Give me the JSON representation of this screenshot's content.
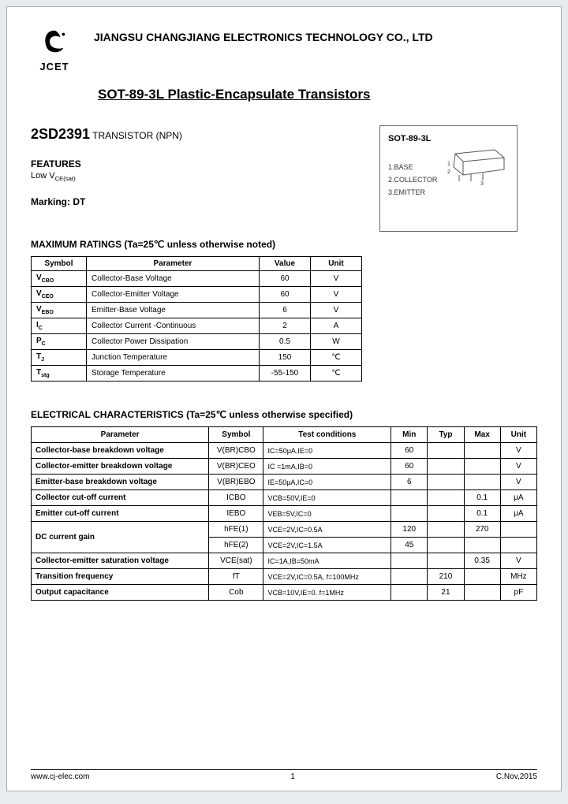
{
  "header": {
    "company": "JIANGSU CHANGJIANG ELECTRONICS TECHNOLOGY CO., LTD",
    "logo_text": "JCET",
    "subtitle": "SOT-89-3L Plastic-Encapsulate Transistors"
  },
  "part": {
    "number": "2SD2391",
    "type": "TRANSISTOR (NPN)"
  },
  "features": {
    "label": "FEATURES",
    "text": "Low V",
    "text_sub": "CE(sat)"
  },
  "marking": "Marking: DT",
  "package": {
    "title": "SOT-89-3L",
    "pins": [
      "1.BASE",
      "2.COLLECTOR",
      "3.EMITTER"
    ]
  },
  "ratings": {
    "title": "MAXIMUM RATINGS (Ta=25℃ unless otherwise noted)",
    "headers": [
      "Symbol",
      "Parameter",
      "Value",
      "Unit"
    ],
    "rows": [
      {
        "sym": "V",
        "sub": "CBO",
        "param": "Collector-Base Voltage",
        "val": "60",
        "unit": "V"
      },
      {
        "sym": "V",
        "sub": "CEO",
        "param": "Collector-Emitter Voltage",
        "val": "60",
        "unit": "V"
      },
      {
        "sym": "V",
        "sub": "EBO",
        "param": "Emitter-Base Voltage",
        "val": "6",
        "unit": "V"
      },
      {
        "sym": "I",
        "sub": "C",
        "param": "Collector Current -Continuous",
        "val": "2",
        "unit": "A"
      },
      {
        "sym": "P",
        "sub": "C",
        "param": "Collector Power Dissipation",
        "val": "0.5",
        "unit": "W"
      },
      {
        "sym": "T",
        "sub": "J",
        "param": "Junction Temperature",
        "val": "150",
        "unit": "℃"
      },
      {
        "sym": "T",
        "sub": "stg",
        "param": "Storage Temperature",
        "val": "-55-150",
        "unit": "℃"
      }
    ]
  },
  "electrical": {
    "title": "ELECTRICAL CHARACTERISTICS (Ta=25℃ unless otherwise specified)",
    "headers": [
      "Parameter",
      "Symbol",
      "Test conditions",
      "Min",
      "Typ",
      "Max",
      "Unit"
    ],
    "rows": [
      {
        "param": "Collector-base breakdown voltage",
        "sym": "V(BR)CBO",
        "cond": "IC=50μA,IE=0",
        "min": "60",
        "typ": "",
        "max": "",
        "unit": "V"
      },
      {
        "param": "Collector-emitter breakdown voltage",
        "sym": "V(BR)CEO",
        "cond": "IC =1mA,IB=0",
        "min": "60",
        "typ": "",
        "max": "",
        "unit": "V"
      },
      {
        "param": "Emitter-base breakdown voltage",
        "sym": "V(BR)EBO",
        "cond": "IE=50μA,IC=0",
        "min": "6",
        "typ": "",
        "max": "",
        "unit": "V"
      },
      {
        "param": "Collector cut-off current",
        "sym": "ICBO",
        "cond": "VCB=50V,IE=0",
        "min": "",
        "typ": "",
        "max": "0.1",
        "unit": "μA"
      },
      {
        "param": "Emitter cut-off current",
        "sym": "IEBO",
        "cond": "VEB=5V,IC=0",
        "min": "",
        "typ": "",
        "max": "0.1",
        "unit": "μA"
      },
      {
        "param": "DC current gain",
        "sym": "hFE(1)",
        "cond": "VCE=2V,IC=0.5A",
        "min": "120",
        "typ": "",
        "max": "270",
        "unit": "",
        "rowspan": 2
      },
      {
        "param": "",
        "sym": "hFE(2)",
        "cond": "VCE=2V,IC=1.5A",
        "min": "45",
        "typ": "",
        "max": "",
        "unit": ""
      },
      {
        "param": "Collector-emitter saturation voltage",
        "sym": "VCE(sat)",
        "cond": "IC=1A,IB=50mA",
        "min": "",
        "typ": "",
        "max": "0.35",
        "unit": "V"
      },
      {
        "param": "Transition frequency",
        "sym": "fT",
        "cond": "VCE=2V,IC=0.5A, f=100MHz",
        "min": "",
        "typ": "210",
        "max": "",
        "unit": "MHz"
      },
      {
        "param": "Output capacitance",
        "sym": "Cob",
        "cond": "VCB=10V,IE=0. f=1MHz",
        "min": "",
        "typ": "21",
        "max": "",
        "unit": "pF"
      }
    ]
  },
  "footer": {
    "url": "www.cj-elec.com",
    "page": "1",
    "date": "C,Nov,2015"
  },
  "colors": {
    "page_bg": "#ffffff",
    "body_bg": "#e8ecf0",
    "border": "#000000",
    "text": "#000000"
  }
}
